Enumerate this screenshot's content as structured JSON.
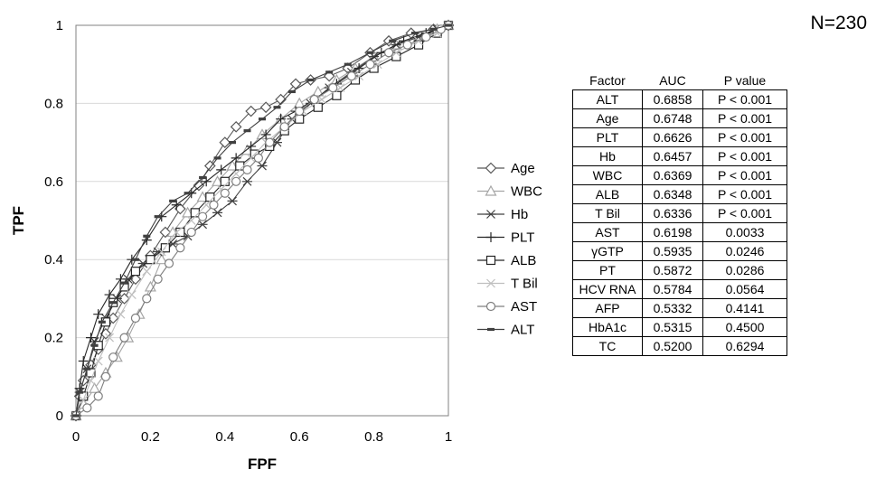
{
  "sample_size_label": "N=230",
  "chart_data": {
    "type": "line",
    "title": "",
    "xlabel": "FPF",
    "ylabel": "TPF",
    "xlim": [
      0,
      1
    ],
    "ylim": [
      0,
      1
    ],
    "x_ticks": [
      "0",
      "0.2",
      "0.4",
      "0.6",
      "0.8",
      "1"
    ],
    "y_ticks": [
      "0",
      "0.2",
      "0.4",
      "0.6",
      "0.8",
      "1"
    ],
    "grid": "horizontal",
    "legend_position": "right",
    "series": [
      {
        "name": "Age",
        "marker": "diamond",
        "color": "#595959",
        "points": [
          [
            0,
            0
          ],
          [
            0.01,
            0.05
          ],
          [
            0.02,
            0.09
          ],
          [
            0.04,
            0.13
          ],
          [
            0.06,
            0.17
          ],
          [
            0.08,
            0.21
          ],
          [
            0.1,
            0.25
          ],
          [
            0.13,
            0.3
          ],
          [
            0.16,
            0.35
          ],
          [
            0.2,
            0.41
          ],
          [
            0.24,
            0.47
          ],
          [
            0.28,
            0.53
          ],
          [
            0.33,
            0.59
          ],
          [
            0.36,
            0.64
          ],
          [
            0.4,
            0.7
          ],
          [
            0.43,
            0.74
          ],
          [
            0.47,
            0.78
          ],
          [
            0.51,
            0.79
          ],
          [
            0.55,
            0.81
          ],
          [
            0.59,
            0.85
          ],
          [
            0.63,
            0.86
          ],
          [
            0.68,
            0.87
          ],
          [
            0.73,
            0.89
          ],
          [
            0.79,
            0.93
          ],
          [
            0.84,
            0.96
          ],
          [
            0.9,
            0.98
          ],
          [
            0.96,
            0.99
          ],
          [
            1,
            1
          ]
        ]
      },
      {
        "name": "WBC",
        "marker": "triangle",
        "color": "#a6a6a6",
        "points": [
          [
            0,
            0
          ],
          [
            0.02,
            0.03
          ],
          [
            0.05,
            0.07
          ],
          [
            0.08,
            0.11
          ],
          [
            0.11,
            0.15
          ],
          [
            0.14,
            0.2
          ],
          [
            0.17,
            0.26
          ],
          [
            0.2,
            0.33
          ],
          [
            0.23,
            0.4
          ],
          [
            0.26,
            0.47
          ],
          [
            0.3,
            0.52
          ],
          [
            0.34,
            0.56
          ],
          [
            0.38,
            0.6
          ],
          [
            0.42,
            0.64
          ],
          [
            0.46,
            0.68
          ],
          [
            0.5,
            0.72
          ],
          [
            0.55,
            0.76
          ],
          [
            0.6,
            0.8
          ],
          [
            0.65,
            0.83
          ],
          [
            0.7,
            0.86
          ],
          [
            0.75,
            0.89
          ],
          [
            0.8,
            0.92
          ],
          [
            0.86,
            0.95
          ],
          [
            0.92,
            0.97
          ],
          [
            0.97,
            0.99
          ],
          [
            1,
            1
          ]
        ]
      },
      {
        "name": "Hb",
        "marker": "asterisk",
        "color": "#404040",
        "points": [
          [
            0,
            0
          ],
          [
            0.01,
            0.06
          ],
          [
            0.03,
            0.12
          ],
          [
            0.05,
            0.19
          ],
          [
            0.08,
            0.25
          ],
          [
            0.11,
            0.3
          ],
          [
            0.14,
            0.35
          ],
          [
            0.18,
            0.39
          ],
          [
            0.22,
            0.42
          ],
          [
            0.26,
            0.44
          ],
          [
            0.3,
            0.46
          ],
          [
            0.34,
            0.49
          ],
          [
            0.38,
            0.52
          ],
          [
            0.42,
            0.55
          ],
          [
            0.46,
            0.6
          ],
          [
            0.5,
            0.64
          ],
          [
            0.54,
            0.7
          ],
          [
            0.58,
            0.76
          ],
          [
            0.63,
            0.8
          ],
          [
            0.68,
            0.84
          ],
          [
            0.74,
            0.88
          ],
          [
            0.8,
            0.92
          ],
          [
            0.86,
            0.95
          ],
          [
            0.92,
            0.97
          ],
          [
            0.97,
            0.99
          ],
          [
            1,
            1
          ]
        ]
      },
      {
        "name": "PLT",
        "marker": "plus",
        "color": "#262626",
        "points": [
          [
            0,
            0
          ],
          [
            0.01,
            0.07
          ],
          [
            0.02,
            0.14
          ],
          [
            0.04,
            0.2
          ],
          [
            0.06,
            0.26
          ],
          [
            0.09,
            0.31
          ],
          [
            0.12,
            0.35
          ],
          [
            0.15,
            0.4
          ],
          [
            0.19,
            0.45
          ],
          [
            0.23,
            0.51
          ],
          [
            0.27,
            0.54
          ],
          [
            0.31,
            0.57
          ],
          [
            0.35,
            0.6
          ],
          [
            0.39,
            0.63
          ],
          [
            0.43,
            0.66
          ],
          [
            0.47,
            0.69
          ],
          [
            0.51,
            0.72
          ],
          [
            0.55,
            0.76
          ],
          [
            0.59,
            0.78
          ],
          [
            0.64,
            0.81
          ],
          [
            0.7,
            0.85
          ],
          [
            0.76,
            0.89
          ],
          [
            0.82,
            0.93
          ],
          [
            0.88,
            0.96
          ],
          [
            0.94,
            0.98
          ],
          [
            1,
            1
          ]
        ]
      },
      {
        "name": "ALB",
        "marker": "square",
        "color": "#262626",
        "points": [
          [
            0,
            0
          ],
          [
            0.02,
            0.05
          ],
          [
            0.04,
            0.11
          ],
          [
            0.06,
            0.18
          ],
          [
            0.08,
            0.24
          ],
          [
            0.1,
            0.29
          ],
          [
            0.13,
            0.33
          ],
          [
            0.16,
            0.37
          ],
          [
            0.2,
            0.4
          ],
          [
            0.24,
            0.43
          ],
          [
            0.28,
            0.47
          ],
          [
            0.32,
            0.52
          ],
          [
            0.36,
            0.56
          ],
          [
            0.4,
            0.6
          ],
          [
            0.44,
            0.64
          ],
          [
            0.48,
            0.67
          ],
          [
            0.52,
            0.69
          ],
          [
            0.56,
            0.73
          ],
          [
            0.6,
            0.76
          ],
          [
            0.65,
            0.79
          ],
          [
            0.7,
            0.82
          ],
          [
            0.75,
            0.86
          ],
          [
            0.8,
            0.89
          ],
          [
            0.86,
            0.92
          ],
          [
            0.92,
            0.95
          ],
          [
            0.97,
            0.98
          ],
          [
            1,
            1
          ]
        ]
      },
      {
        "name": "T Bil",
        "marker": "x",
        "color": "#bfbfbf",
        "points": [
          [
            0,
            0
          ],
          [
            0.02,
            0.04
          ],
          [
            0.04,
            0.09
          ],
          [
            0.06,
            0.14
          ],
          [
            0.09,
            0.2
          ],
          [
            0.12,
            0.26
          ],
          [
            0.15,
            0.31
          ],
          [
            0.19,
            0.37
          ],
          [
            0.23,
            0.42
          ],
          [
            0.27,
            0.47
          ],
          [
            0.31,
            0.5
          ],
          [
            0.35,
            0.54
          ],
          [
            0.39,
            0.58
          ],
          [
            0.43,
            0.62
          ],
          [
            0.47,
            0.66
          ],
          [
            0.51,
            0.7
          ],
          [
            0.56,
            0.74
          ],
          [
            0.61,
            0.78
          ],
          [
            0.66,
            0.81
          ],
          [
            0.71,
            0.84
          ],
          [
            0.76,
            0.87
          ],
          [
            0.81,
            0.9
          ],
          [
            0.86,
            0.93
          ],
          [
            0.92,
            0.96
          ],
          [
            0.97,
            0.98
          ],
          [
            1,
            1
          ]
        ]
      },
      {
        "name": "AST",
        "marker": "circle",
        "color": "#7f7f7f",
        "points": [
          [
            0,
            0
          ],
          [
            0.03,
            0.02
          ],
          [
            0.06,
            0.05
          ],
          [
            0.08,
            0.1
          ],
          [
            0.1,
            0.15
          ],
          [
            0.13,
            0.2
          ],
          [
            0.16,
            0.25
          ],
          [
            0.19,
            0.3
          ],
          [
            0.22,
            0.35
          ],
          [
            0.25,
            0.39
          ],
          [
            0.28,
            0.43
          ],
          [
            0.31,
            0.47
          ],
          [
            0.34,
            0.51
          ],
          [
            0.37,
            0.54
          ],
          [
            0.4,
            0.57
          ],
          [
            0.43,
            0.6
          ],
          [
            0.46,
            0.63
          ],
          [
            0.49,
            0.66
          ],
          [
            0.52,
            0.7
          ],
          [
            0.56,
            0.74
          ],
          [
            0.6,
            0.78
          ],
          [
            0.64,
            0.81
          ],
          [
            0.69,
            0.84
          ],
          [
            0.74,
            0.87
          ],
          [
            0.79,
            0.9
          ],
          [
            0.84,
            0.93
          ],
          [
            0.89,
            0.95
          ],
          [
            0.94,
            0.97
          ],
          [
            0.98,
            0.99
          ],
          [
            1,
            1
          ]
        ]
      },
      {
        "name": "ALT",
        "marker": "dash",
        "color": "#404040",
        "points": [
          [
            0,
            0
          ],
          [
            0.01,
            0.06
          ],
          [
            0.03,
            0.12
          ],
          [
            0.05,
            0.18
          ],
          [
            0.07,
            0.24
          ],
          [
            0.1,
            0.29
          ],
          [
            0.13,
            0.34
          ],
          [
            0.16,
            0.4
          ],
          [
            0.19,
            0.46
          ],
          [
            0.22,
            0.51
          ],
          [
            0.26,
            0.55
          ],
          [
            0.3,
            0.57
          ],
          [
            0.34,
            0.61
          ],
          [
            0.38,
            0.66
          ],
          [
            0.42,
            0.7
          ],
          [
            0.46,
            0.73
          ],
          [
            0.5,
            0.76
          ],
          [
            0.54,
            0.79
          ],
          [
            0.58,
            0.83
          ],
          [
            0.63,
            0.86
          ],
          [
            0.68,
            0.88
          ],
          [
            0.73,
            0.9
          ],
          [
            0.79,
            0.93
          ],
          [
            0.85,
            0.96
          ],
          [
            0.91,
            0.98
          ],
          [
            0.96,
            0.99
          ],
          [
            1,
            1
          ]
        ]
      }
    ]
  },
  "auc_table": {
    "headers": [
      "Factor",
      "AUC",
      "P value"
    ],
    "rows": [
      [
        "ALT",
        "0.6858",
        "P < 0.001"
      ],
      [
        "Age",
        "0.6748",
        "P < 0.001"
      ],
      [
        "PLT",
        "0.6626",
        "P < 0.001"
      ],
      [
        "Hb",
        "0.6457",
        "P < 0.001"
      ],
      [
        "WBC",
        "0.6369",
        "P < 0.001"
      ],
      [
        "ALB",
        "0.6348",
        "P < 0.001"
      ],
      [
        "T Bil",
        "0.6336",
        "P < 0.001"
      ],
      [
        "AST",
        "0.6198",
        "0.0033"
      ],
      [
        "γGTP",
        "0.5935",
        "0.0246"
      ],
      [
        "PT",
        "0.5872",
        "0.0286"
      ],
      [
        "HCV RNA",
        "0.5784",
        "0.0564"
      ],
      [
        "AFP",
        "0.5332",
        "0.4141"
      ],
      [
        "HbA1c",
        "0.5315",
        "0.4500"
      ],
      [
        "TC",
        "0.5200",
        "0.6294"
      ]
    ]
  }
}
